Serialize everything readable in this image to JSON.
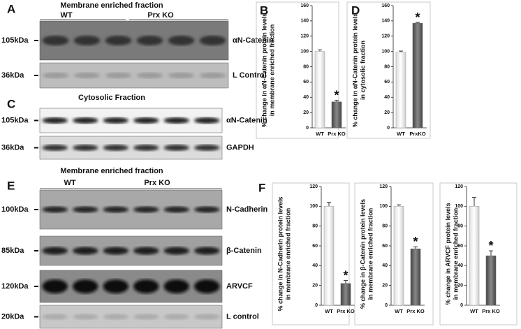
{
  "blots": {
    "panels": [
      {
        "letter": "A",
        "title": "Membrane enriched fraction",
        "groups": [
          "WT",
          "Prx KO"
        ],
        "rows": [
          {
            "size": "105kDa",
            "protein": "αN-Catenin"
          },
          {
            "size": "36kDa",
            "protein": "L Control"
          }
        ]
      },
      {
        "letter": "C",
        "title": "Cytosolic Fraction",
        "rows": [
          {
            "size": "105kDa",
            "protein": "αN-Catenin"
          },
          {
            "size": "36kDa",
            "protein": "GAPDH"
          }
        ]
      },
      {
        "letter": "E",
        "title": "Membrane enriched fraction",
        "groups": [
          "WT",
          "Prx KO"
        ],
        "rows": [
          {
            "size": "100kDa",
            "protein": "N-Cadherin"
          },
          {
            "size": "85kDa",
            "protein": "β-Catenin"
          },
          {
            "size": "120kDa",
            "protein": "ARVCF"
          },
          {
            "size": "20kDa",
            "protein": "L control"
          }
        ]
      }
    ]
  },
  "chart_data": [
    {
      "type": "bar",
      "panel": "B",
      "ylabel": [
        "% change in αN-Catenin protein levels",
        "in membrane enriched fraction"
      ],
      "categories": [
        "WT",
        "Prx KO"
      ],
      "values": [
        100,
        34
      ],
      "errors": [
        2,
        2
      ],
      "colors": [
        "#ffffff",
        "#6a6a6a"
      ],
      "annotation": "*",
      "ylim": [
        0,
        160
      ],
      "yticks": [
        0,
        20,
        40,
        60,
        80,
        100,
        120,
        140,
        160
      ]
    },
    {
      "type": "bar",
      "panel": "D",
      "ylabel": [
        "% change in αN-Catenin protein levels",
        "in cytosolic fraction"
      ],
      "categories": [
        "WT",
        "PrxKO"
      ],
      "values": [
        99,
        137
      ],
      "errors": [
        1.5,
        1
      ],
      "colors": [
        "#ffffff",
        "#6a6a6a"
      ],
      "annotation": "*",
      "ylim": [
        0,
        160
      ],
      "yticks": [
        0,
        20,
        40,
        60,
        80,
        100,
        120,
        140,
        160
      ]
    },
    {
      "type": "bar",
      "panel": "F",
      "ylabel": [
        "% change in N-Cadherin protein levels",
        "in membrane enriched fraction"
      ],
      "categories": [
        "WT",
        "Prx KO"
      ],
      "values": [
        100,
        22
      ],
      "errors": [
        4,
        3
      ],
      "colors": [
        "#ffffff",
        "#6a6a6a"
      ],
      "annotation": "*",
      "ylim": [
        0,
        120
      ],
      "yticks": [
        0,
        20,
        40,
        60,
        80,
        100,
        120
      ]
    },
    {
      "type": "bar",
      "ylabel": [
        "% change in β-Catenin protein levels",
        "in membrane enriched fraction"
      ],
      "categories": [
        "WT",
        "Prx KO"
      ],
      "values": [
        100,
        57
      ],
      "errors": [
        1.5,
        2
      ],
      "colors": [
        "#ffffff",
        "#6a6a6a"
      ],
      "annotation": "*",
      "ylim": [
        0,
        120
      ],
      "yticks": [
        0,
        20,
        40,
        60,
        80,
        100,
        120
      ]
    },
    {
      "type": "bar",
      "ylabel": [
        "% change in ARVCF protein levels",
        "in membrane enriched fraction"
      ],
      "categories": [
        "WT",
        "Prx KO"
      ],
      "values": [
        100,
        50
      ],
      "errors": [
        9,
        5
      ],
      "colors": [
        "#ffffff",
        "#6a6a6a"
      ],
      "annotation": "*",
      "ylim": [
        0,
        120
      ],
      "yticks": [
        0,
        20,
        40,
        60,
        80,
        100,
        120
      ]
    }
  ]
}
